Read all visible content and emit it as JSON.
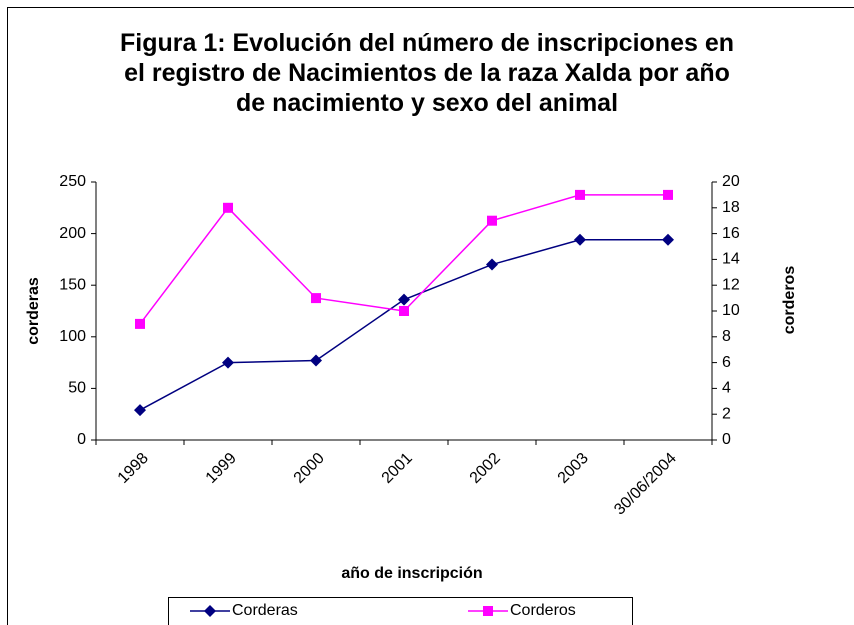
{
  "chart_data": {
    "type": "line",
    "title": "Figura 1: Evolución del número de inscripciones en el registro de Nacimientos de la raza Xalda por año de nacimiento y sexo del animal",
    "x_label": "año de inscripción",
    "y_label": "corderas",
    "y2_label": "corderos",
    "categories": [
      "1998",
      "1999",
      "2000",
      "2001",
      "2002",
      "2003",
      "30/06/2004"
    ],
    "series": [
      {
        "name": "Corderas",
        "color": "#000080",
        "marker": "diamond",
        "values": [
          29,
          75,
          77,
          136,
          170,
          194,
          194
        ]
      },
      {
        "name": "Corderos",
        "color": "#ff00ff",
        "marker": "square",
        "axis": "y2",
        "values": [
          9,
          18,
          11,
          10,
          17,
          19,
          19
        ]
      }
    ],
    "ylim": [
      0,
      250
    ],
    "yticks": [
      0,
      50,
      100,
      150,
      200,
      250
    ],
    "y2lim": [
      0,
      20
    ],
    "y2ticks": [
      0,
      2,
      4,
      6,
      8,
      10,
      12,
      14,
      16,
      18,
      20
    ],
    "legend": "bottom"
  }
}
